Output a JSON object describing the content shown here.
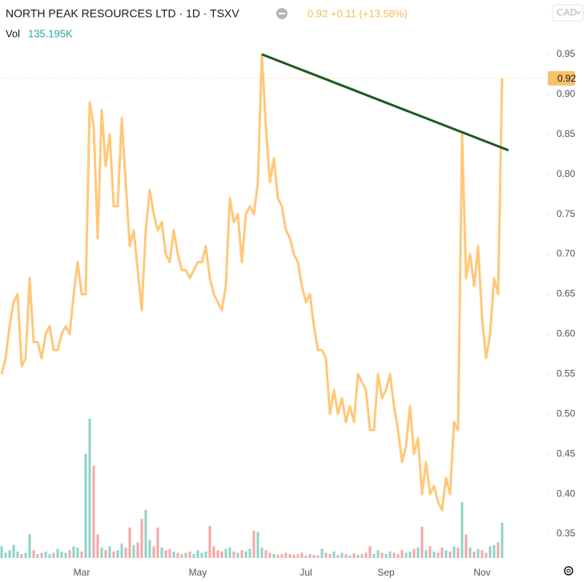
{
  "chart_data": {
    "type": "line",
    "title": "NORTH PEAK RESOURCES LTD · 1D · TSXV",
    "quote": "0.92 +0.11 (+13.58%)",
    "currency": "CAD",
    "categories": [
      null,
      null,
      null,
      null,
      null,
      null,
      null,
      null,
      null,
      null,
      null,
      null,
      null,
      null,
      null,
      null,
      null,
      null,
      null,
      null,
      "Mar",
      null,
      null,
      null,
      null,
      null,
      null,
      null,
      null,
      null,
      null,
      null,
      null,
      null,
      null,
      null,
      null,
      null,
      null,
      null,
      null,
      null,
      null,
      null,
      null,
      null,
      null,
      null,
      null,
      "May",
      null,
      null,
      null,
      null,
      null,
      null,
      null,
      null,
      null,
      null,
      null,
      null,
      null,
      null,
      null,
      null,
      null,
      null,
      null,
      null,
      null,
      null,
      null,
      null,
      null,
      null,
      "Jul",
      null,
      null,
      null,
      null,
      null,
      null,
      null,
      null,
      null,
      null,
      null,
      null,
      null,
      null,
      null,
      null,
      null,
      null,
      null,
      "Sep",
      null,
      null,
      null,
      null,
      null,
      null,
      null,
      null,
      null,
      null,
      null,
      null,
      null,
      null,
      null,
      null,
      null,
      null,
      null,
      null,
      null,
      null,
      null,
      "Nov",
      null,
      null,
      null,
      null,
      null
    ],
    "series": [
      {
        "color": "#ffc87a",
        "values": [
          0.55,
          0.57,
          0.61,
          0.64,
          0.65,
          0.56,
          0.57,
          0.67,
          0.59,
          0.59,
          0.57,
          0.6,
          0.61,
          0.58,
          0.58,
          0.6,
          0.61,
          0.6,
          0.65,
          0.69,
          0.65,
          0.65,
          0.89,
          0.86,
          0.72,
          0.88,
          0.81,
          0.85,
          0.76,
          0.76,
          0.87,
          0.79,
          0.71,
          0.73,
          0.68,
          0.63,
          0.73,
          0.78,
          0.75,
          0.73,
          0.74,
          0.7,
          0.69,
          0.73,
          0.7,
          0.68,
          0.68,
          0.67,
          0.68,
          0.69,
          0.69,
          0.71,
          0.67,
          0.65,
          0.64,
          0.63,
          0.66,
          0.77,
          0.74,
          0.75,
          0.69,
          0.75,
          0.76,
          0.75,
          0.79,
          0.95,
          0.86,
          0.79,
          0.82,
          0.77,
          0.76,
          0.73,
          0.72,
          0.7,
          0.69,
          0.66,
          0.64,
          0.65,
          0.61,
          0.58,
          0.58,
          0.57,
          0.5,
          0.53,
          0.5,
          0.52,
          0.49,
          0.51,
          0.49,
          0.55,
          0.54,
          0.53,
          0.48,
          0.48,
          0.55,
          0.52,
          0.53,
          0.55,
          0.51,
          0.48,
          0.44,
          0.46,
          0.51,
          0.45,
          0.47,
          0.4,
          0.44,
          0.4,
          0.41,
          0.39,
          0.38,
          0.42,
          0.4,
          0.49,
          0.48,
          0.85,
          0.67,
          0.7,
          0.66,
          0.71,
          0.62,
          0.57,
          0.6,
          0.67,
          0.65,
          0.92
        ]
      }
    ],
    "volume": {
      "name": "Vol",
      "last_label": "135.195K",
      "up_color": "#8fd3c8",
      "down_color": "#f5a6a6",
      "values": [
        45000,
        20000,
        30000,
        50000,
        25000,
        15000,
        20000,
        92000,
        30000,
        15000,
        20000,
        25000,
        15000,
        20000,
        35000,
        25000,
        20000,
        30000,
        45000,
        40000,
        25000,
        400000,
        535000,
        355000,
        90000,
        40000,
        30000,
        45000,
        25000,
        30000,
        55000,
        40000,
        117000,
        50000,
        60000,
        150000,
        185000,
        70000,
        45000,
        117000,
        40000,
        30000,
        35000,
        25000,
        20000,
        15000,
        20000,
        25000,
        15000,
        30000,
        20000,
        25000,
        123000,
        45000,
        30000,
        25000,
        35000,
        40000,
        25000,
        20000,
        30000,
        25000,
        35000,
        105000,
        100000,
        40000,
        30000,
        20000,
        15000,
        12000,
        15000,
        20000,
        15000,
        12000,
        15000,
        20000,
        10000,
        15000,
        12000,
        10000,
        35000,
        20000,
        15000,
        25000,
        12000,
        20000,
        15000,
        10000,
        18000,
        12000,
        15000,
        20000,
        45000,
        15000,
        30000,
        20000,
        15000,
        25000,
        20000,
        15000,
        30000,
        20000,
        25000,
        35000,
        40000,
        120000,
        30000,
        45000,
        25000,
        20000,
        40000,
        30000,
        25000,
        45000,
        40000,
        215000,
        90000,
        40000,
        25000,
        35000,
        30000,
        20000,
        45000,
        50000,
        60000,
        135195
      ]
    },
    "ylim": [
      0.317,
      1.018
    ],
    "yticks": [
      0.35,
      {
        "value": 0.4,
        "label": "0.40"
      },
      0.45,
      {
        "value": 0.5,
        "label": "0.50"
      },
      0.55,
      {
        "value": 0.6,
        "label": "0.60"
      },
      0.65,
      {
        "value": 0.7,
        "label": "0.70"
      },
      0.75,
      {
        "value": 0.8,
        "label": "0.80"
      },
      0.85,
      {
        "value": 0.9,
        "label": "0.90"
      },
      0.95
    ],
    "trendline": {
      "color": "#1e5a1e",
      "x": [
        65,
        126.6
      ],
      "values": [
        0.95,
        0.83
      ]
    },
    "last_price_line": true
  }
}
